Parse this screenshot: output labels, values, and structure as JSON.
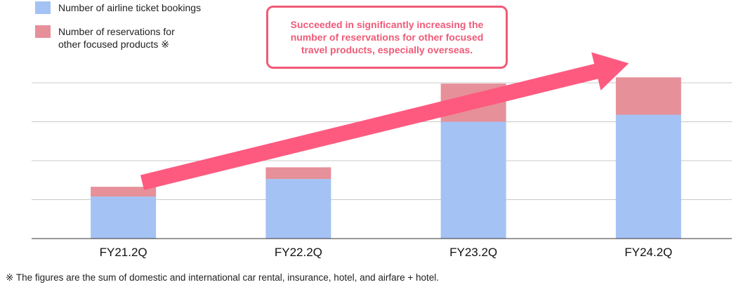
{
  "colors": {
    "airline": "#a4c2f4",
    "other": "#e69099",
    "arrow": "#fe5a80",
    "callout": "#f05a78",
    "grid": "#c8c8c8",
    "axis": "#333333"
  },
  "legend": [
    {
      "label": "Number of airline ticket bookings",
      "color_key": "airline"
    },
    {
      "label": "Number of reservations for\nother focused products ※",
      "color_key": "other"
    }
  ],
  "callout": {
    "text": "Succeeded in significantly increasing the number of reservations for other focused travel products, especially overseas."
  },
  "footnote": "※ The figures are the sum of domestic and international car rental, insurance, hotel, and airfare + hotel.",
  "chart_data": {
    "type": "bar",
    "stacked": true,
    "categories": [
      "FY21.2Q",
      "FY22.2Q",
      "FY23.2Q",
      "FY24.2Q"
    ],
    "series": [
      {
        "name": "Number of airline ticket bookings",
        "values": [
          1.08,
          1.53,
          3.0,
          3.18
        ],
        "color_key": "airline"
      },
      {
        "name": "Number of reservations for other focused products ※",
        "values": [
          0.25,
          0.3,
          0.98,
          0.96
        ],
        "color_key": "other"
      }
    ],
    "ylim": [
      0,
      4
    ],
    "grid": true,
    "gridlines": [
      1,
      2,
      3,
      4
    ],
    "y_tick_labels_shown": false,
    "legend_position": "top-left",
    "trend_arrow": true
  }
}
